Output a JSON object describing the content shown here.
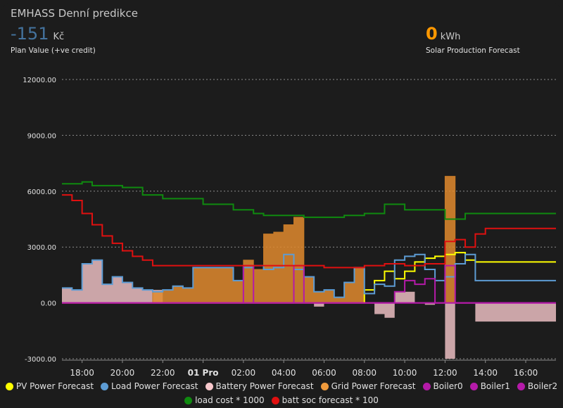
{
  "header": {
    "title": "EMHASS Denní predikce",
    "plan_value": "-151",
    "plan_unit": "Kč",
    "plan_caption": "Plan Value (+ve credit)",
    "solar_value": "0",
    "solar_unit": "kWh",
    "solar_caption": "Solar Production Forecast",
    "plan_color": "#44739e",
    "solar_color": "#ff9800"
  },
  "chart_data": {
    "type": "line",
    "y_ticks": [
      "12000.00",
      "9000.00",
      "6000.00",
      "3000.00",
      "0.00",
      "-3000.00"
    ],
    "ylim": [
      -3000,
      12000
    ],
    "x_ticks": [
      "18:00",
      "20:00",
      "22:00",
      "01 Pro",
      "02:00",
      "04:00",
      "06:00",
      "08:00",
      "10:00",
      "12:00",
      "14:00",
      "16:00"
    ],
    "x_tick_hours": [
      18,
      20,
      22,
      24,
      26,
      28,
      30,
      32,
      34,
      36,
      38,
      40
    ],
    "xlim": [
      17,
      41.5
    ],
    "grid": true,
    "legend_position": "bottom",
    "series": [
      {
        "name": "PV Power Forecast",
        "color": "#ffff00",
        "kind": "step",
        "points": [
          [
            17,
            0
          ],
          [
            32,
            0
          ],
          [
            32,
            700
          ],
          [
            32.5,
            1200
          ],
          [
            33,
            1700
          ],
          [
            33.5,
            1300
          ],
          [
            34,
            1700
          ],
          [
            34.5,
            2200
          ],
          [
            35,
            2400
          ],
          [
            35.5,
            2500
          ],
          [
            36,
            2600
          ],
          [
            36.5,
            2700
          ],
          [
            37,
            2300
          ],
          [
            37.5,
            2200
          ],
          [
            41.5,
            2200
          ]
        ]
      },
      {
        "name": "Load Power Forecast",
        "color": "#5d9cd4",
        "kind": "step",
        "points": [
          [
            17,
            800
          ],
          [
            17.5,
            700
          ],
          [
            18,
            2100
          ],
          [
            18.5,
            2300
          ],
          [
            19,
            1000
          ],
          [
            19.5,
            1400
          ],
          [
            20,
            1100
          ],
          [
            20.5,
            800
          ],
          [
            21,
            700
          ],
          [
            21.5,
            600
          ],
          [
            22,
            700
          ],
          [
            22.5,
            900
          ],
          [
            23,
            800
          ],
          [
            23.5,
            1900
          ],
          [
            24,
            1900
          ],
          [
            24.5,
            1900
          ],
          [
            25,
            1900
          ],
          [
            25.5,
            1200
          ],
          [
            26,
            1900
          ],
          [
            26.5,
            2000
          ],
          [
            27,
            1800
          ],
          [
            27.5,
            1900
          ],
          [
            28,
            2600
          ],
          [
            28.5,
            1800
          ],
          [
            29,
            1400
          ],
          [
            29.5,
            600
          ],
          [
            30,
            700
          ],
          [
            30.5,
            300
          ],
          [
            31,
            1100
          ],
          [
            31.5,
            1900
          ],
          [
            32,
            500
          ],
          [
            32.5,
            1000
          ],
          [
            33,
            900
          ],
          [
            33.5,
            2300
          ],
          [
            34,
            2500
          ],
          [
            34.5,
            2600
          ],
          [
            35,
            1800
          ],
          [
            35.5,
            1200
          ],
          [
            36,
            1400
          ],
          [
            36.5,
            2100
          ],
          [
            37,
            2600
          ],
          [
            37.5,
            1200
          ],
          [
            38,
            1200
          ],
          [
            41.5,
            1200
          ]
        ]
      },
      {
        "name": "Battery Power Forecast",
        "color": "#f8c8cc",
        "kind": "bar",
        "points": [
          [
            17,
            800
          ],
          [
            17.5,
            700
          ],
          [
            18,
            2100
          ],
          [
            18.5,
            2300
          ],
          [
            19,
            1000
          ],
          [
            19.5,
            1400
          ],
          [
            20,
            1100
          ],
          [
            20.5,
            800
          ],
          [
            21,
            700
          ],
          [
            22,
            0
          ],
          [
            29.5,
            -200
          ],
          [
            30,
            0
          ],
          [
            32.5,
            -600
          ],
          [
            33,
            -800
          ],
          [
            33.5,
            600
          ],
          [
            34.5,
            0
          ],
          [
            35,
            -100
          ],
          [
            35.5,
            0
          ],
          [
            36,
            -3000
          ],
          [
            36.5,
            0
          ],
          [
            37.5,
            -1000
          ],
          [
            41.5,
            -1000
          ]
        ]
      },
      {
        "name": "Grid Power Forecast",
        "color": "#e0892e",
        "kind": "bar",
        "points": [
          [
            17,
            0
          ],
          [
            21.5,
            600
          ],
          [
            22,
            700
          ],
          [
            22.5,
            900
          ],
          [
            23,
            800
          ],
          [
            23.5,
            1900
          ],
          [
            24,
            1900
          ],
          [
            24.5,
            1900
          ],
          [
            25,
            1900
          ],
          [
            25.5,
            1200
          ],
          [
            26,
            2300
          ],
          [
            26.5,
            1800
          ],
          [
            27,
            3700
          ],
          [
            27.5,
            3800
          ],
          [
            28,
            4200
          ],
          [
            28.5,
            4600
          ],
          [
            29,
            1400
          ],
          [
            29.5,
            600
          ],
          [
            30,
            700
          ],
          [
            30.5,
            300
          ],
          [
            31,
            1100
          ],
          [
            31.5,
            1900
          ],
          [
            32,
            0
          ],
          [
            36,
            6800
          ],
          [
            36.5,
            0
          ],
          [
            41.5,
            0
          ]
        ]
      },
      {
        "name": "Boiler0",
        "color": "#b41aa8",
        "kind": "step",
        "points": [
          [
            17,
            0
          ],
          [
            26,
            0
          ],
          [
            26,
            2000
          ],
          [
            26.5,
            0
          ],
          [
            28.5,
            0
          ],
          [
            28.5,
            2000
          ],
          [
            29,
            0
          ],
          [
            33.5,
            0
          ],
          [
            33.5,
            600
          ],
          [
            34,
            1200
          ],
          [
            34.5,
            1000
          ],
          [
            35,
            1300
          ],
          [
            35.5,
            0
          ],
          [
            36,
            2000
          ],
          [
            36.5,
            0
          ],
          [
            41.5,
            0
          ]
        ]
      },
      {
        "name": "Boiler1",
        "color": "#b41aa8",
        "kind": "step",
        "points": [
          [
            17,
            0
          ],
          [
            41.5,
            0
          ]
        ]
      },
      {
        "name": "Boiler2",
        "color": "#b41aa8",
        "kind": "step",
        "points": [
          [
            17,
            0
          ],
          [
            41.5,
            0
          ]
        ]
      },
      {
        "name": "load cost * 1000",
        "color": "#0f8a0f",
        "kind": "step",
        "points": [
          [
            17,
            6400
          ],
          [
            17.5,
            6400
          ],
          [
            18,
            6500
          ],
          [
            18.5,
            6300
          ],
          [
            19,
            6300
          ],
          [
            20,
            6200
          ],
          [
            21,
            5800
          ],
          [
            22,
            5600
          ],
          [
            24,
            5300
          ],
          [
            25.5,
            5000
          ],
          [
            26.5,
            4800
          ],
          [
            27,
            4700
          ],
          [
            28,
            4700
          ],
          [
            29,
            4600
          ],
          [
            30,
            4600
          ],
          [
            31,
            4700
          ],
          [
            32,
            4800
          ],
          [
            32.5,
            4800
          ],
          [
            33,
            5300
          ],
          [
            33.5,
            5300
          ],
          [
            34,
            5000
          ],
          [
            35.5,
            5000
          ],
          [
            36,
            4500
          ],
          [
            37,
            4800
          ],
          [
            41.5,
            4800
          ]
        ]
      },
      {
        "name": "batt soc forecast * 100",
        "color": "#e01010",
        "kind": "step",
        "points": [
          [
            17,
            5800
          ],
          [
            17.5,
            5500
          ],
          [
            18,
            4800
          ],
          [
            18.5,
            4200
          ],
          [
            19,
            3600
          ],
          [
            19.5,
            3200
          ],
          [
            20,
            2800
          ],
          [
            20.5,
            2500
          ],
          [
            21,
            2300
          ],
          [
            21.5,
            2000
          ],
          [
            23.5,
            2000
          ],
          [
            24,
            2000
          ],
          [
            28,
            2000
          ],
          [
            29,
            2000
          ],
          [
            30,
            1900
          ],
          [
            31,
            1900
          ],
          [
            32,
            2000
          ],
          [
            33,
            2100
          ],
          [
            34,
            2000
          ],
          [
            35,
            2100
          ],
          [
            35.5,
            2100
          ],
          [
            36,
            3300
          ],
          [
            36.5,
            3400
          ],
          [
            37,
            3000
          ],
          [
            37.5,
            3700
          ],
          [
            38,
            4000
          ],
          [
            41.5,
            4000
          ]
        ]
      }
    ]
  }
}
